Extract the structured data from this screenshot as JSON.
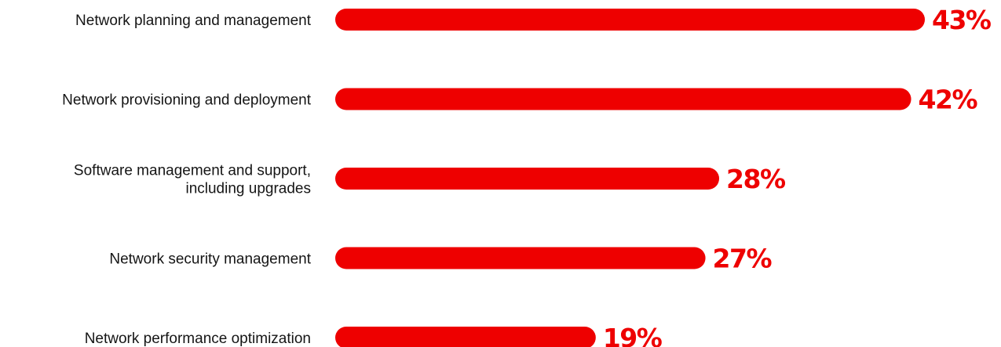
{
  "chart_data": {
    "type": "bar",
    "orientation": "horizontal",
    "categories": [
      [
        "Network planning and management"
      ],
      [
        "Network provisioning and deployment"
      ],
      [
        "Software management and support,",
        "including upgrades"
      ],
      [
        "Network security management"
      ],
      [
        "Network performance optimization"
      ]
    ],
    "values": [
      43,
      42,
      28,
      27,
      19
    ],
    "value_labels": [
      "43%",
      "42%",
      "28%",
      "27%",
      "19%"
    ],
    "title": "",
    "xlabel": "",
    "ylabel": "",
    "xlim": [
      0,
      43
    ],
    "grid": false,
    "legend": "none",
    "colors": {
      "bar": "#ee0000",
      "value_label": "#ee0000",
      "category_label": "#151515"
    }
  }
}
